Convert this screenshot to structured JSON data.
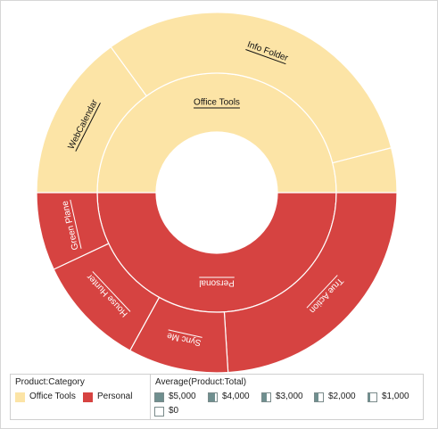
{
  "chart_data": {
    "type": "sunburst",
    "inner_ring": [
      {
        "label": "Office Tools",
        "value": 50,
        "color": "#fce4a6",
        "label_color": "#111111"
      },
      {
        "label": "Personal",
        "value": 50,
        "color": "#d64341",
        "label_color": "#ffffff"
      }
    ],
    "outer_ring": [
      {
        "label": "WebCalendar",
        "parent": "Office Tools",
        "value": 15,
        "color": "#fce4a6",
        "label_color": "#111111"
      },
      {
        "label": "Info Folder",
        "parent": "Office Tools",
        "value": 31,
        "color": "#fce4a6",
        "label_color": "#111111"
      },
      {
        "label": "",
        "parent": "Office Tools",
        "value": 4,
        "color": "#fce4a6",
        "label_color": "#111111"
      },
      {
        "label": "True Action",
        "parent": "Personal",
        "value": 24,
        "color": "#d64341",
        "label_color": "#ffffff"
      },
      {
        "label": "Sync Me",
        "parent": "Personal",
        "value": 9,
        "color": "#d64341",
        "label_color": "#ffffff"
      },
      {
        "label": "House Hunter",
        "parent": "Personal",
        "value": 10,
        "color": "#d64341",
        "label_color": "#ffffff"
      },
      {
        "label": "Green Plane",
        "parent": "Personal",
        "value": 7,
        "color": "#d64341",
        "label_color": "#ffffff"
      }
    ]
  },
  "legend": {
    "category_title": "Product:Category",
    "categories": [
      {
        "label": "Office Tools",
        "color": "#fce4a6"
      },
      {
        "label": "Personal",
        "color": "#d64341"
      }
    ],
    "average_title": "Average(Product:Total)",
    "average_items": [
      {
        "label": "$5,000",
        "fill": 1.0
      },
      {
        "label": "$4,000",
        "fill": 0.8
      },
      {
        "label": "$3,000",
        "fill": 0.6
      },
      {
        "label": "$2,000",
        "fill": 0.4
      },
      {
        "label": "$1,000",
        "fill": 0.2
      },
      {
        "label": "$0",
        "fill": 0.0
      }
    ]
  }
}
